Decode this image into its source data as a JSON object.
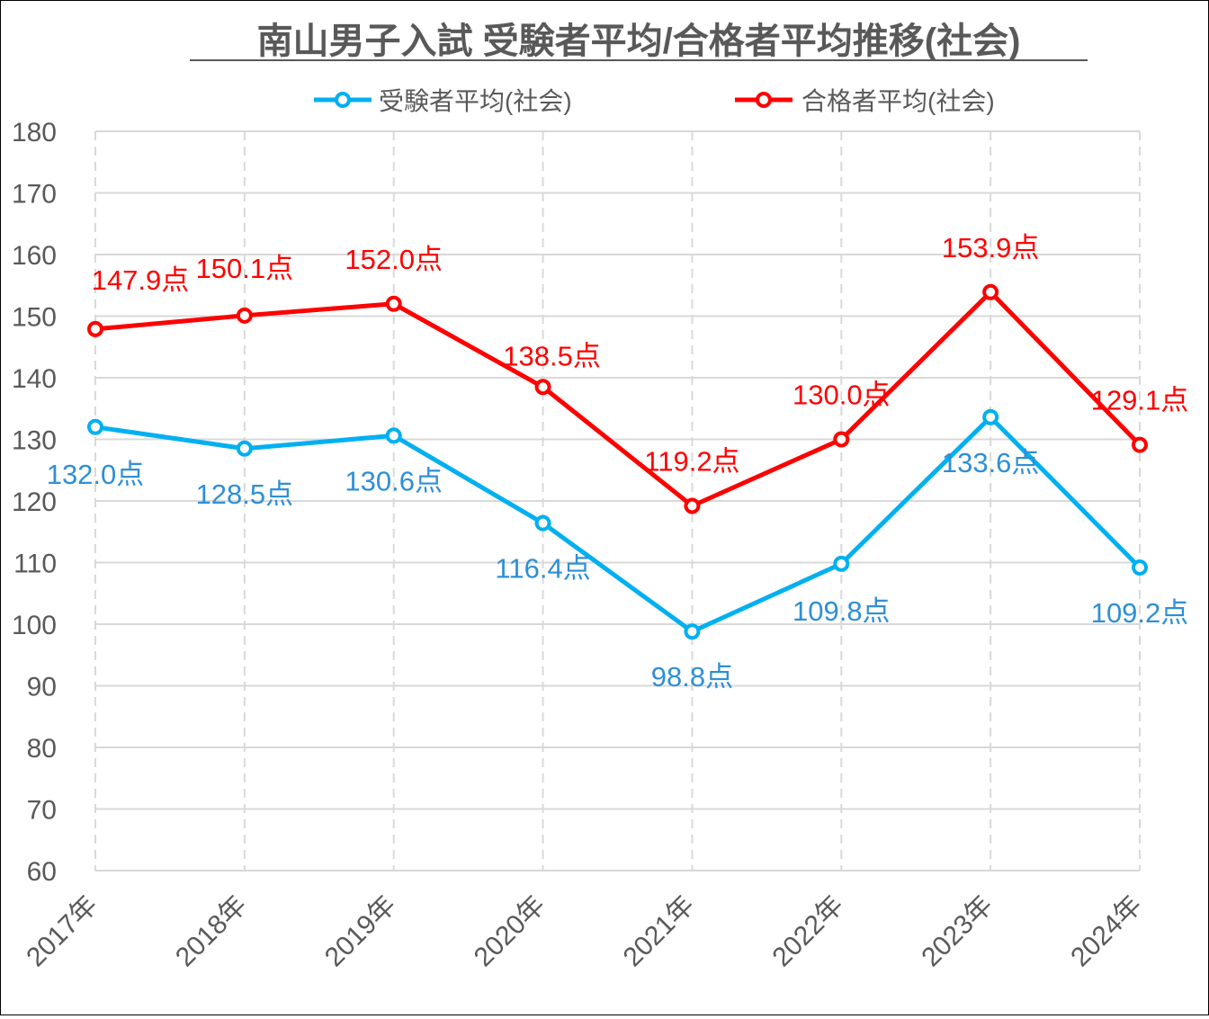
{
  "chart_data": {
    "type": "line",
    "title": "南山男子入試 受験者平均/合格者平均推移(社会)",
    "categories": [
      "2017年",
      "2018年",
      "2019年",
      "2020年",
      "2021年",
      "2022年",
      "2023年",
      "2024年"
    ],
    "ylim": [
      60,
      180
    ],
    "yticks": [
      60,
      70,
      80,
      90,
      100,
      110,
      120,
      130,
      140,
      150,
      160,
      170,
      180
    ],
    "grid": true,
    "legend_position": "top",
    "series": [
      {
        "name": "受験者平均(社会)",
        "color": "#00b0f0",
        "label_color": "#2e8fd6",
        "values": [
          132.0,
          128.5,
          130.6,
          116.4,
          98.8,
          109.8,
          133.6,
          109.2
        ],
        "labels": [
          "132.0点",
          "128.5点",
          "130.6点",
          "116.4点",
          "98.8点",
          "109.8点",
          "133.6点",
          "109.2点"
        ]
      },
      {
        "name": "合格者平均(社会)",
        "color": "#ff0000",
        "label_color": "#ff0000",
        "values": [
          147.9,
          150.1,
          152.0,
          138.5,
          119.2,
          130.0,
          153.9,
          129.1
        ],
        "labels": [
          "147.9点",
          "150.1点",
          "152.0点",
          "138.5点",
          "119.2点",
          "130.0点",
          "153.9点",
          "129.1点"
        ]
      }
    ]
  }
}
